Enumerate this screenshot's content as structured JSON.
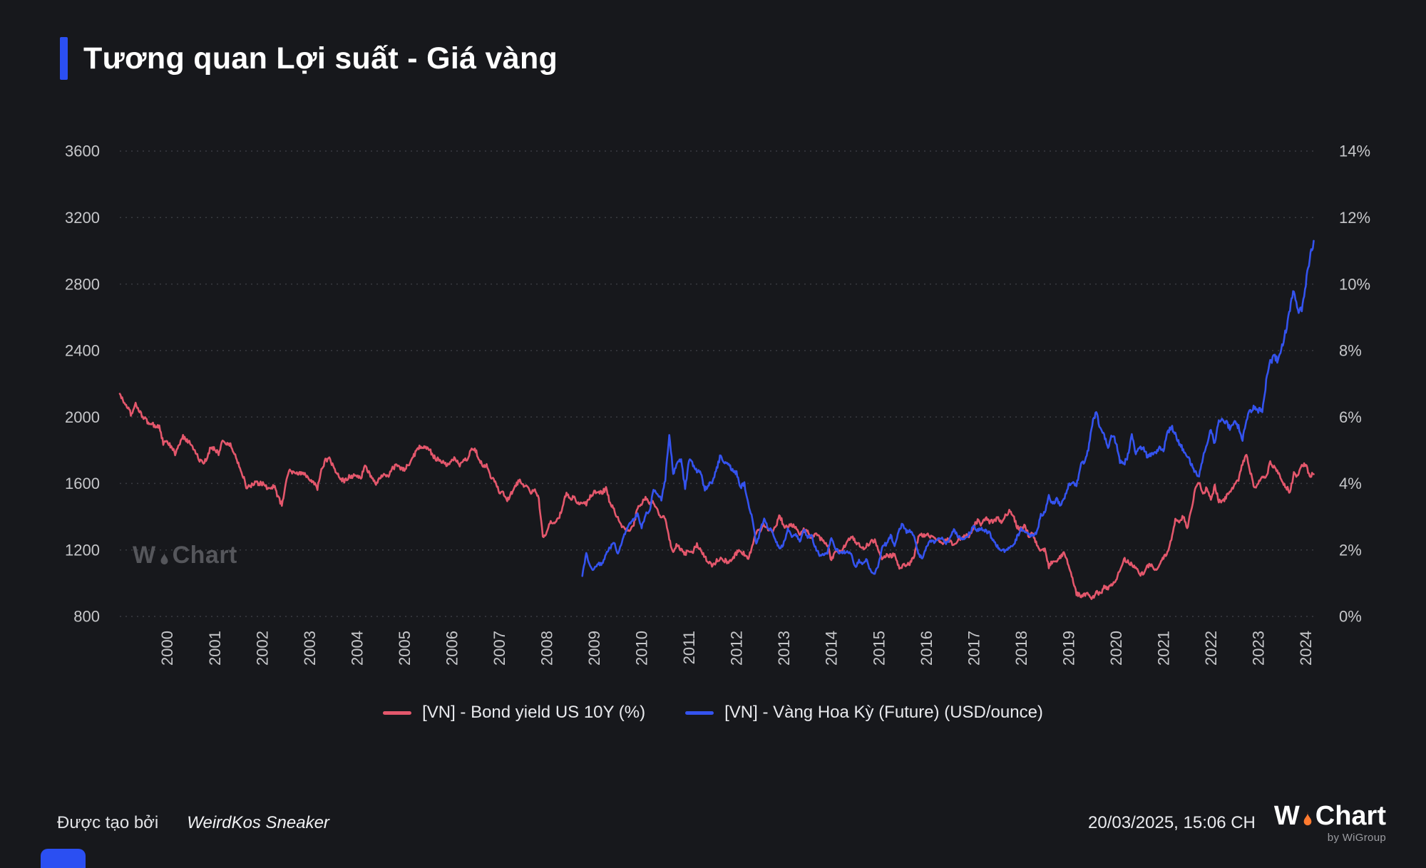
{
  "title": {
    "text": "Tương quan Lợi suất - Giá vàng"
  },
  "brand": {
    "w": "W",
    "chart": "Chart",
    "sub": "by WiGroup"
  },
  "colors": {
    "background": "#17181c",
    "accent": "#2b4ff2",
    "red": "#e4576c",
    "blue": "#3453ef",
    "grid": "#3a3b41",
    "axis_text": "#c6c7ca",
    "watermark": "#55565b",
    "flame": "#ff7a2f"
  },
  "legend": {
    "items": [
      {
        "label": "[VN] - Bond yield US 10Y (%)",
        "color": "#e4576c"
      },
      {
        "label": "[VN] - Vàng Hoa Kỳ (Future) (USD/ounce)",
        "color": "#3453ef"
      }
    ]
  },
  "footer": {
    "created_by": "Được tạo bởi",
    "author": "WeirdKos Sneaker",
    "timestamp": "20/03/2025, 15:06 CH"
  },
  "chart_data": {
    "type": "line",
    "title": "Tương quan Lợi suất - Giá vàng",
    "grid": "dotted-horizontal",
    "legend_position": "bottom",
    "x_axis": {
      "min": 2000,
      "max": 2025.25,
      "year_labels": [
        "2000",
        "2001",
        "2002",
        "2003",
        "2004",
        "2005",
        "2006",
        "2007",
        "2008",
        "2009",
        "2010",
        "2011",
        "2012",
        "2013",
        "2014",
        "2015",
        "2016",
        "2017",
        "2018",
        "2019",
        "2020",
        "2021",
        "2022",
        "2023",
        "2024"
      ]
    },
    "left_axis": {
      "label": "USD/ounce",
      "min": 800,
      "max": 3600,
      "tick_values": [
        800,
        1200,
        1600,
        2000,
        2400,
        2800,
        3200,
        3600
      ],
      "tick_labels": [
        "800",
        "1200",
        "1600",
        "2000",
        "2400",
        "2800",
        "3200",
        "3600"
      ]
    },
    "right_axis": {
      "label": "%",
      "min": 0,
      "max": 14,
      "tick_labels": [
        "0%",
        "2%",
        "4%",
        "6%",
        "8%",
        "10%",
        "12%",
        "14%"
      ]
    },
    "series": [
      {
        "name": "[VN] - Bond yield US 10Y (%)",
        "axis": "right",
        "unit": "%",
        "color": "#e4576c",
        "start_year": 2000.0,
        "points_per_year": 12,
        "values": [
          6.7,
          6.45,
          6.3,
          6.05,
          6.4,
          6.15,
          6.0,
          5.85,
          5.8,
          5.72,
          5.72,
          5.2,
          5.25,
          5.1,
          4.9,
          5.15,
          5.4,
          5.3,
          5.2,
          5.0,
          4.72,
          4.6,
          4.72,
          5.1,
          5.05,
          4.9,
          5.3,
          5.2,
          5.15,
          4.9,
          4.6,
          4.3,
          3.9,
          3.9,
          4.0,
          4.0,
          4.0,
          3.9,
          3.8,
          3.95,
          3.6,
          3.35,
          4.0,
          4.45,
          4.3,
          4.3,
          4.3,
          4.27,
          4.15,
          4.05,
          3.85,
          4.4,
          4.7,
          4.73,
          4.5,
          4.28,
          4.12,
          4.08,
          4.2,
          4.23,
          4.22,
          4.17,
          4.5,
          4.34,
          4.12,
          4.0,
          4.18,
          4.26,
          4.2,
          4.46,
          4.54,
          4.47,
          4.42,
          4.57,
          4.72,
          5.0,
          5.11,
          5.11,
          5.09,
          4.88,
          4.72,
          4.73,
          4.6,
          4.56,
          4.76,
          4.72,
          4.56,
          4.69,
          4.75,
          5.1,
          5.0,
          4.67,
          4.52,
          4.53,
          4.15,
          4.1,
          3.74,
          3.74,
          3.51,
          3.68,
          3.88,
          4.1,
          3.98,
          3.89,
          3.69,
          3.81,
          3.53,
          2.42,
          2.52,
          2.87,
          2.82,
          2.93,
          3.29,
          3.72,
          3.56,
          3.59,
          3.4,
          3.39,
          3.4,
          3.59,
          3.73,
          3.69,
          3.73,
          3.85,
          3.42,
          3.2,
          2.97,
          2.7,
          2.65,
          2.54,
          2.76,
          3.29,
          3.39,
          3.58,
          3.41,
          3.46,
          3.17,
          3.0,
          2.99,
          2.3,
          1.98,
          2.17,
          2.01,
          1.89,
          1.97,
          1.97,
          2.17,
          1.95,
          1.8,
          1.62,
          1.53,
          1.68,
          1.72,
          1.69,
          1.62,
          1.72,
          1.91,
          1.98,
          1.87,
          1.7,
          2.13,
          2.52,
          2.6,
          2.78,
          2.64,
          2.57,
          2.75,
          3.04,
          2.67,
          2.71,
          2.73,
          2.71,
          2.48,
          2.6,
          2.53,
          2.35,
          2.52,
          2.35,
          2.25,
          2.17,
          1.68,
          1.98,
          1.94,
          2.05,
          2.21,
          2.43,
          2.25,
          2.17,
          2.06,
          2.14,
          2.26,
          2.27,
          1.94,
          1.74,
          1.83,
          1.83,
          1.84,
          1.49,
          1.51,
          1.57,
          1.6,
          1.84,
          2.37,
          2.45,
          2.45,
          2.42,
          2.4,
          2.29,
          2.21,
          2.3,
          2.3,
          2.12,
          2.33,
          2.38,
          2.42,
          2.4,
          2.72,
          2.87,
          2.74,
          2.95,
          2.86,
          2.85,
          2.96,
          2.86,
          3.05,
          3.15,
          3.01,
          2.69,
          2.63,
          2.72,
          2.41,
          2.5,
          2.14,
          2.0,
          2.02,
          1.5,
          1.68,
          1.69,
          1.78,
          1.92,
          1.51,
          1.15,
          0.7,
          0.62,
          0.65,
          0.66,
          0.53,
          0.72,
          0.68,
          0.87,
          0.84,
          0.93,
          1.09,
          1.44,
          1.74,
          1.63,
          1.58,
          1.45,
          1.24,
          1.3,
          1.52,
          1.55,
          1.43,
          1.52,
          1.79,
          1.93,
          2.32,
          2.89,
          2.85,
          3.01,
          2.64,
          3.19,
          3.83,
          4.05,
          3.68,
          3.88,
          3.52,
          3.92,
          3.48,
          3.44,
          3.64,
          3.81,
          3.97,
          4.11,
          4.59,
          4.88,
          4.33,
          3.88,
          3.99,
          4.25,
          4.2,
          4.62,
          4.5,
          4.36,
          4.09,
          3.91,
          3.74,
          4.28,
          4.18,
          4.57,
          4.57,
          4.24,
          4.28
        ]
      },
      {
        "name": "[VN] - Vàng Hoa Kỳ (Future) (USD/ounce)",
        "axis": "left",
        "unit": "USD/ounce",
        "color": "#3453ef",
        "start_year": 2009.75,
        "points_per_year": 12,
        "values": [
          1043,
          1175,
          1095,
          1083,
          1118,
          1113,
          1180,
          1212,
          1244,
          1172,
          1248,
          1310,
          1358,
          1385,
          1421,
          1333,
          1412,
          1432,
          1563,
          1535,
          1502,
          1628,
          1885,
          1660,
          1722,
          1750,
          1566,
          1740,
          1711,
          1671,
          1662,
          1562,
          1600,
          1614,
          1691,
          1774,
          1720,
          1714,
          1676,
          1662,
          1580,
          1596,
          1472,
          1390,
          1232,
          1312,
          1396,
          1328,
          1324,
          1250,
          1204,
          1244,
          1326,
          1284,
          1296,
          1250,
          1322,
          1282,
          1287,
          1211,
          1172,
          1176,
          1184,
          1279,
          1213,
          1184,
          1184,
          1190,
          1171,
          1096,
          1134,
          1114,
          1142,
          1065,
          1060,
          1116,
          1234,
          1234,
          1290,
          1215,
          1320,
          1357,
          1309,
          1316,
          1273,
          1174,
          1152,
          1211,
          1251,
          1247,
          1268,
          1270,
          1241,
          1268,
          1322,
          1281,
          1271,
          1274,
          1305,
          1340,
          1318,
          1325,
          1315,
          1300,
          1252,
          1221,
          1201,
          1192,
          1215,
          1220,
          1281,
          1321,
          1316,
          1292,
          1286,
          1306,
          1410,
          1424,
          1528,
          1472,
          1511,
          1463,
          1519,
          1587,
          1600,
          1583,
          1710,
          1735,
          1800,
          1962,
          2040,
          1930,
          1900,
          1805,
          1893,
          1850,
          1728,
          1712,
          1768,
          1900,
          1770,
          1814,
          1814,
          1757,
          1784,
          1776,
          1829,
          1796,
          1901,
          1942,
          1896,
          1842,
          1806,
          1766,
          1716,
          1672,
          1640,
          1760,
          1826,
          1928,
          1836,
          1986,
          1990,
          1962,
          1929,
          1971,
          1940,
          1866,
          1994,
          2038,
          2063,
          2040,
          2044,
          2212,
          2330,
          2360,
          2340,
          2430,
          2520,
          2650,
          2760,
          2640,
          2641,
          2800,
          2950,
          3060
        ]
      }
    ]
  }
}
